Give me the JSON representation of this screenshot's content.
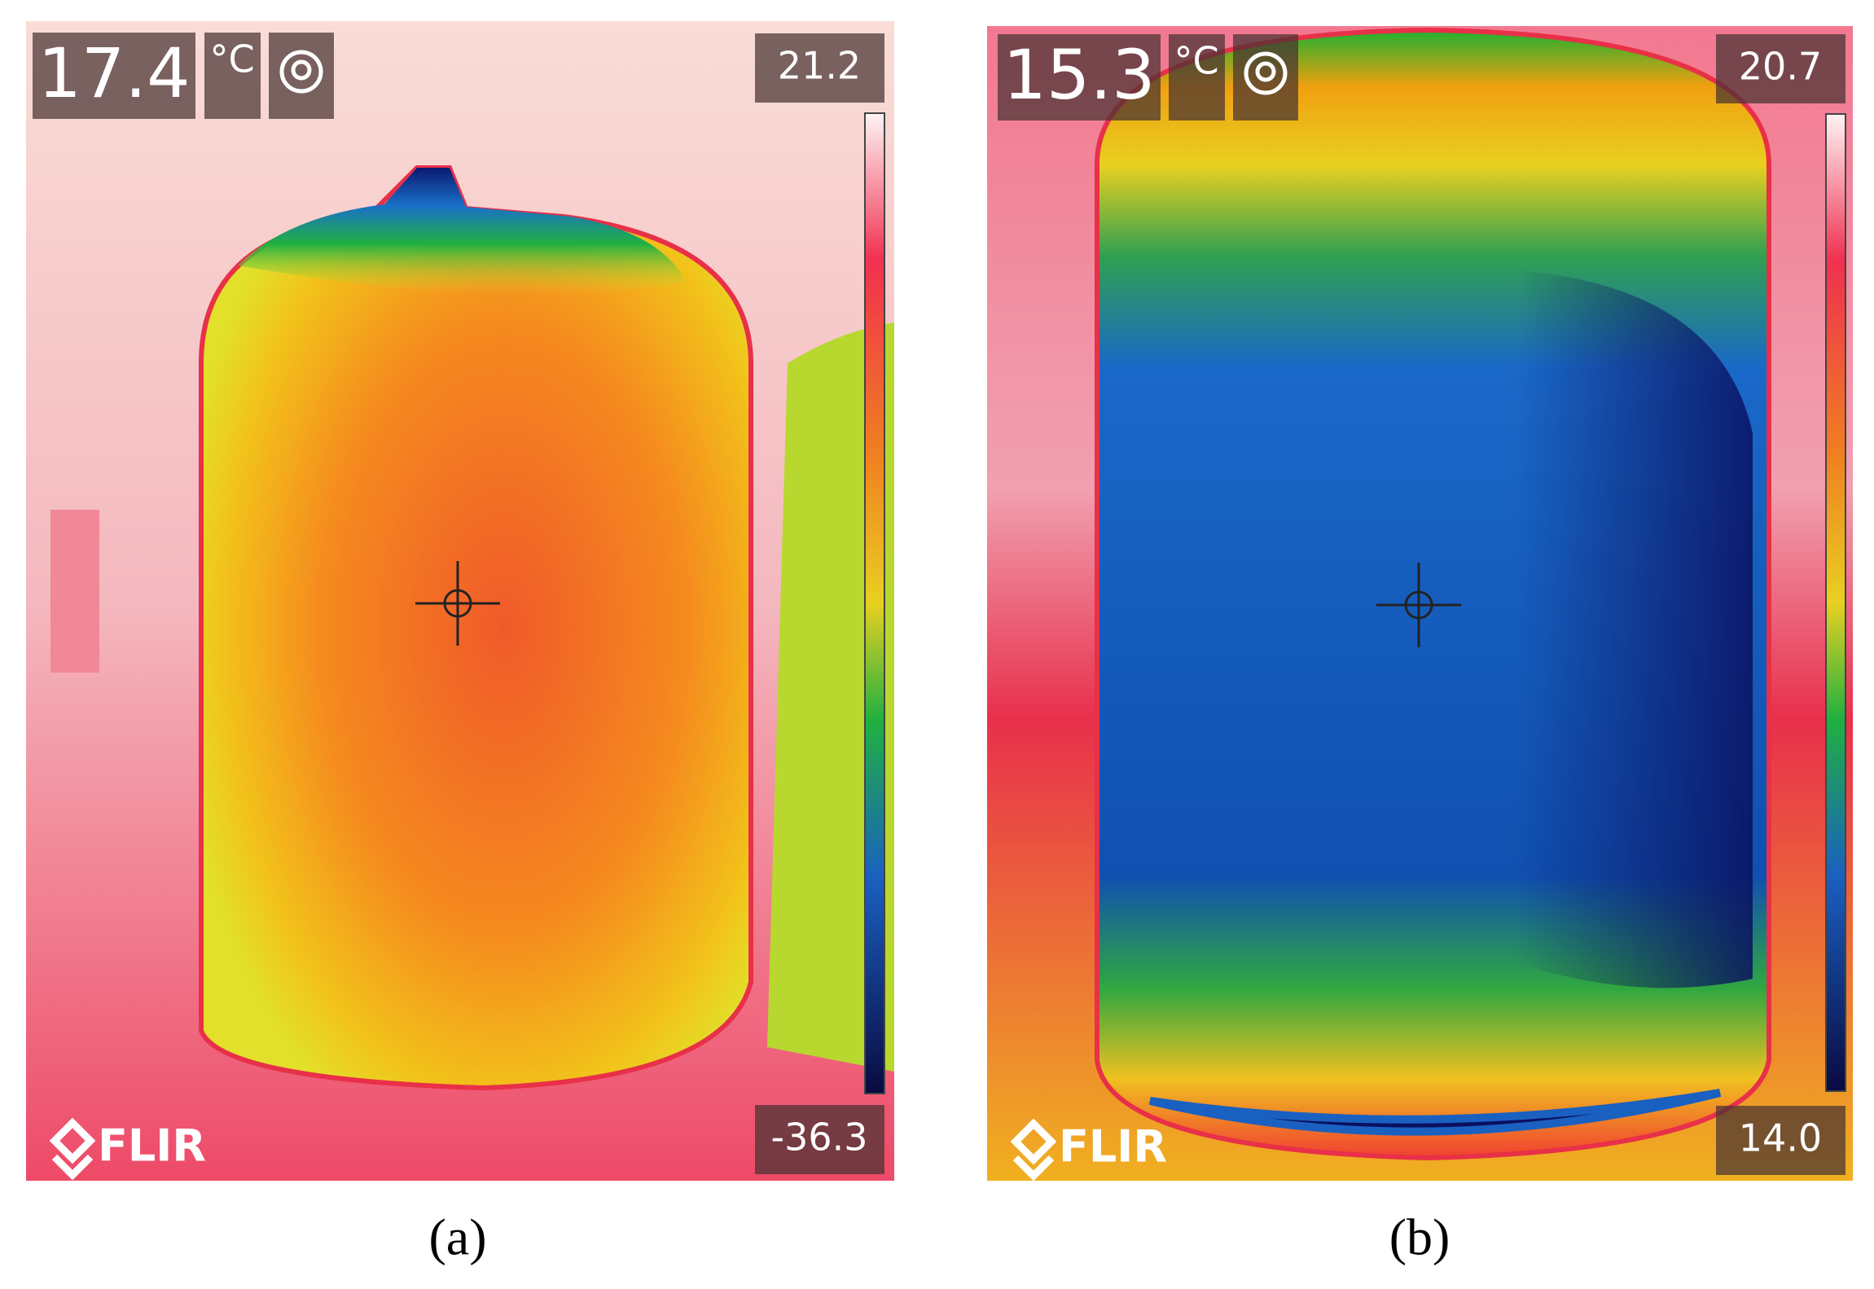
{
  "panels": [
    {
      "spot_temp": "17.4",
      "unit": "°C",
      "scale_max": "21.2",
      "scale_min": "-36.3",
      "logo": "FLIR",
      "caption": "(a)"
    },
    {
      "spot_temp": "15.3",
      "unit": "°C",
      "scale_max": "20.7",
      "scale_min": "14.0",
      "logo": "FLIR",
      "caption": "(b)"
    }
  ]
}
